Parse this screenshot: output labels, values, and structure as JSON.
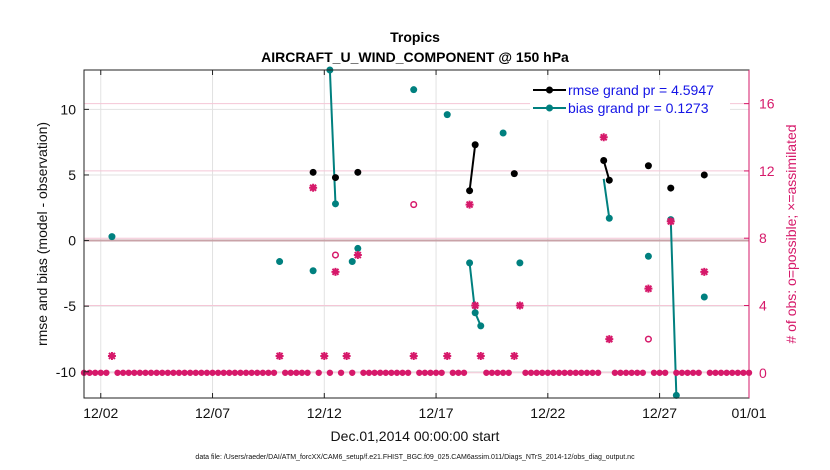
{
  "chart_data": {
    "type": "scatter",
    "title": "Tropics",
    "subtitle": "AIRCRAFT_U_WIND_COMPONENT @ 150 hPa",
    "xlabel": "Dec.01,2014 00:00:00 start",
    "ylabel": "rmse and bias (model - observation)",
    "y2label": "# of obs: o=possible; ×=assimilated",
    "footer": "data file: /Users/raeder/DAI/ATM_forcXX/CAM6_setup/f.e21.FHIST_BGC.f09_025.CAM6assim.011/Diags_NTrS_2014-12/obs_diag_output.nc",
    "xlim": [
      1.25,
      31.0
    ],
    "ylim": [
      -12,
      13
    ],
    "y2lim": [
      -1.5,
      18
    ],
    "x_ticks": [
      {
        "value": 2,
        "label": "12/02"
      },
      {
        "value": 7,
        "label": "12/07"
      },
      {
        "value": 12,
        "label": "12/12"
      },
      {
        "value": 17,
        "label": "12/17"
      },
      {
        "value": 22,
        "label": "12/22"
      },
      {
        "value": 27,
        "label": "12/27"
      },
      {
        "value": 31,
        "label": "01/01"
      }
    ],
    "y_ticks": [
      -10,
      -5,
      0,
      5,
      10
    ],
    "y2_ticks": [
      0,
      4,
      8,
      12,
      16
    ],
    "legend": [
      {
        "label": "rmse grand pr = 4.5947",
        "color": "#000000"
      },
      {
        "label": "bias grand pr = 0.1273",
        "color": "#00807f"
      }
    ],
    "series": [
      {
        "name": "rmse",
        "color": "#000000",
        "points": [
          [
            11.5,
            5.2
          ],
          [
            12.5,
            4.8
          ],
          [
            13.5,
            5.2
          ],
          [
            18.5,
            3.8
          ],
          [
            18.75,
            7.3
          ],
          [
            20.5,
            5.1
          ],
          [
            24.5,
            6.1
          ],
          [
            24.75,
            4.6
          ],
          [
            26.5,
            5.7
          ],
          [
            27.5,
            4.0
          ],
          [
            29.0,
            5.0
          ]
        ],
        "segments": [
          [
            [
              12.5,
              4.8
            ]
          ],
          [
            [
              18.5,
              3.8
            ],
            [
              18.75,
              7.3
            ]
          ],
          [
            [
              24.5,
              6.1
            ],
            [
              24.75,
              4.6
            ]
          ]
        ]
      },
      {
        "name": "bias",
        "color": "#00807f",
        "points": [
          [
            2.5,
            0.3
          ],
          [
            10.0,
            -1.6
          ],
          [
            11.5,
            -2.3
          ],
          [
            12.25,
            13.0
          ],
          [
            12.5,
            2.8
          ],
          [
            13.25,
            -1.6
          ],
          [
            13.5,
            -0.6
          ],
          [
            16.0,
            11.5
          ],
          [
            17.5,
            9.6
          ],
          [
            18.5,
            -1.7
          ],
          [
            18.75,
            -5.5
          ],
          [
            19.0,
            -6.5
          ],
          [
            20.0,
            8.2
          ],
          [
            20.75,
            -1.7
          ],
          [
            24.75,
            1.7
          ],
          [
            26.5,
            -1.2
          ],
          [
            27.5,
            1.6
          ],
          [
            27.75,
            -11.8
          ],
          [
            29.0,
            -4.3
          ]
        ],
        "segments": [
          [
            [
              12.25,
              13.0
            ],
            [
              12.5,
              2.8
            ]
          ],
          [
            [
              18.5,
              -1.7
            ],
            [
              18.75,
              -5.5
            ],
            [
              19.0,
              -6.5
            ]
          ],
          [
            [
              24.5,
              4.7
            ],
            [
              24.75,
              1.7
            ]
          ],
          [
            [
              27.5,
              1.6
            ],
            [
              27.75,
              -11.8
            ]
          ]
        ]
      }
    ],
    "obs_possible": {
      "color": "#d6196a",
      "points": [
        [
          16.0,
          10.0
        ],
        [
          12.5,
          7.0
        ],
        [
          26.5,
          2.0
        ]
      ]
    },
    "obs_assimilated": {
      "color": "#d6196a",
      "points": [
        [
          2.5,
          1.0
        ],
        [
          10.0,
          1.0
        ],
        [
          11.5,
          11.0
        ],
        [
          12.0,
          1.0
        ],
        [
          12.5,
          6.0
        ],
        [
          13.0,
          1.0
        ],
        [
          13.5,
          7.0
        ],
        [
          16.0,
          1.0
        ],
        [
          17.5,
          1.0
        ],
        [
          18.5,
          10.0
        ],
        [
          18.75,
          4.0
        ],
        [
          19.0,
          1.0
        ],
        [
          20.5,
          1.0
        ],
        [
          20.75,
          4.0
        ],
        [
          24.5,
          14.0
        ],
        [
          24.75,
          2.0
        ],
        [
          26.5,
          5.0
        ],
        [
          27.5,
          9.0
        ],
        [
          29.0,
          6.0
        ]
      ],
      "baseline_from": 1.25,
      "baseline_to": 31.0,
      "baseline_step": 0.25,
      "baseline_value": 0
    }
  }
}
